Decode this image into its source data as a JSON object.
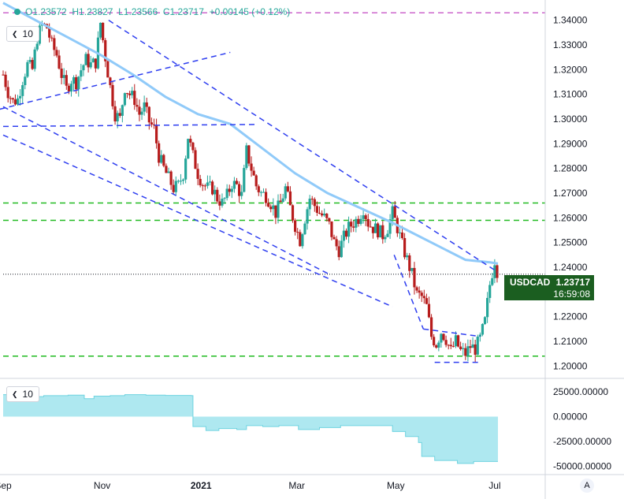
{
  "header": {
    "o": "O1.23572",
    "h": "H1.23827",
    "l": "L1.23566",
    "c": "C1.23717",
    "chg": "+0.00145 (+0.12%)"
  },
  "legend": {
    "main_length": "10",
    "sub_length": "10"
  },
  "price_tag": {
    "symbol": "USDCAD",
    "price": "1.23717",
    "countdown": "16:59:08"
  },
  "auto_button": "A",
  "colors": {
    "up": "#26a69a",
    "down": "#b71c1c",
    "ma": "#90caf9",
    "trend": "#2f3ff0",
    "support": "#22bb22",
    "top_line": "#cc66cc",
    "tag": "#1b5e20",
    "lower_fill": "#aee8f0"
  },
  "chart_data": [
    {
      "type": "candlestick",
      "title": "",
      "symbol": "USDCAD",
      "x_ticks": [
        "Sep",
        "Nov",
        "2021",
        "Mar",
        "May",
        "Jul"
      ],
      "y_ticks": [
        "1.20000",
        "1.21000",
        "1.22000",
        "1.23000",
        "1.24000",
        "1.25000",
        "1.26000",
        "1.27000",
        "1.28000",
        "1.29000",
        "1.30000",
        "1.31000",
        "1.32000",
        "1.33000",
        "1.34000"
      ],
      "ylim": [
        1.195,
        1.345
      ],
      "last_price": 1.23717,
      "x_span_days": [
        0,
        305
      ],
      "date_ticks_day": [
        0,
        61,
        122,
        181,
        242,
        303
      ],
      "close_path": [
        [
          0,
          1.318
        ],
        [
          3,
          1.311
        ],
        [
          6,
          1.307
        ],
        [
          9,
          1.308
        ],
        [
          12,
          1.316
        ],
        [
          15,
          1.322
        ],
        [
          18,
          1.32
        ],
        [
          21,
          1.333
        ],
        [
          24,
          1.338
        ],
        [
          27,
          1.337
        ],
        [
          30,
          1.33
        ],
        [
          33,
          1.326
        ],
        [
          36,
          1.318
        ],
        [
          39,
          1.312
        ],
        [
          42,
          1.316
        ],
        [
          45,
          1.315
        ],
        [
          48,
          1.32
        ],
        [
          51,
          1.324
        ],
        [
          54,
          1.322
        ],
        [
          57,
          1.323
        ],
        [
          60,
          1.339
        ],
        [
          63,
          1.325
        ],
        [
          66,
          1.313
        ],
        [
          69,
          1.302
        ],
        [
          72,
          1.3
        ],
        [
          75,
          1.313
        ],
        [
          78,
          1.31
        ],
        [
          81,
          1.308
        ],
        [
          84,
          1.302
        ],
        [
          87,
          1.305
        ],
        [
          90,
          1.299
        ],
        [
          93,
          1.296
        ],
        [
          96,
          1.285
        ],
        [
          99,
          1.28
        ],
        [
          102,
          1.276
        ],
        [
          105,
          1.272
        ],
        [
          108,
          1.273
        ],
        [
          111,
          1.278
        ],
        [
          114,
          1.293
        ],
        [
          117,
          1.285
        ],
        [
          120,
          1.278
        ],
        [
          123,
          1.274
        ],
        [
          126,
          1.272
        ],
        [
          129,
          1.272
        ],
        [
          132,
          1.268
        ],
        [
          135,
          1.266
        ],
        [
          138,
          1.269
        ],
        [
          141,
          1.274
        ],
        [
          144,
          1.273
        ],
        [
          147,
          1.269
        ],
        [
          150,
          1.287
        ],
        [
          153,
          1.28
        ],
        [
          156,
          1.273
        ],
        [
          159,
          1.27
        ],
        [
          162,
          1.269
        ],
        [
          165,
          1.266
        ],
        [
          168,
          1.262
        ],
        [
          171,
          1.266
        ],
        [
          174,
          1.272
        ],
        [
          177,
          1.264
        ],
        [
          180,
          1.257
        ],
        [
          183,
          1.251
        ],
        [
          186,
          1.26
        ],
        [
          189,
          1.268
        ],
        [
          192,
          1.265
        ],
        [
          195,
          1.262
        ],
        [
          198,
          1.26
        ],
        [
          201,
          1.257
        ],
        [
          204,
          1.25
        ],
        [
          207,
          1.247
        ],
        [
          210,
          1.252
        ],
        [
          213,
          1.256
        ],
        [
          216,
          1.258
        ],
        [
          219,
          1.26
        ],
        [
          222,
          1.264
        ],
        [
          225,
          1.258
        ],
        [
          228,
          1.256
        ],
        [
          231,
          1.255
        ],
        [
          234,
          1.253
        ],
        [
          237,
          1.256
        ],
        [
          240,
          1.262
        ],
        [
          243,
          1.256
        ],
        [
          246,
          1.249
        ],
        [
          249,
          1.243
        ],
        [
          252,
          1.237
        ],
        [
          255,
          1.229
        ],
        [
          258,
          1.228
        ],
        [
          261,
          1.224
        ],
        [
          264,
          1.212
        ],
        [
          267,
          1.209
        ],
        [
          270,
          1.214
        ],
        [
          273,
          1.211
        ],
        [
          276,
          1.206
        ],
        [
          279,
          1.21
        ],
        [
          282,
          1.206
        ],
        [
          285,
          1.205
        ],
        [
          288,
          1.208
        ],
        [
          291,
          1.207
        ],
        [
          294,
          1.211
        ],
        [
          297,
          1.218
        ],
        [
          300,
          1.233
        ],
        [
          303,
          1.243
        ],
        [
          305,
          1.2372
        ]
      ],
      "ma_path": [
        [
          0,
          1.347
        ],
        [
          20,
          1.34
        ],
        [
          40,
          1.333
        ],
        [
          60,
          1.326
        ],
        [
          80,
          1.318
        ],
        [
          100,
          1.309
        ],
        [
          120,
          1.302
        ],
        [
          140,
          1.298
        ],
        [
          160,
          1.288
        ],
        [
          180,
          1.278
        ],
        [
          200,
          1.27
        ],
        [
          220,
          1.264
        ],
        [
          240,
          1.258
        ],
        [
          255,
          1.253
        ],
        [
          270,
          1.248
        ],
        [
          285,
          1.243
        ],
        [
          300,
          1.242
        ],
        [
          305,
          1.2415
        ]
      ],
      "trend_lines": [
        {
          "style": "dashed",
          "color": "trend",
          "points": [
            [
              -2,
              1.304
            ],
            [
              140,
              1.327
            ]
          ]
        },
        {
          "style": "dashed",
          "color": "trend",
          "points": [
            [
              0,
              1.297
            ],
            [
              155,
              1.2978
            ]
          ]
        },
        {
          "style": "dashed",
          "color": "trend",
          "points": [
            [
              0,
              1.305
            ],
            [
              200,
              1.2375
            ]
          ]
        },
        {
          "style": "dashed",
          "color": "trend",
          "points": [
            [
              0,
              1.2935
            ],
            [
              240,
              1.224
            ]
          ]
        },
        {
          "style": "dashed",
          "color": "trend",
          "points": [
            [
              65,
              1.34
            ],
            [
              305,
              1.238
            ]
          ]
        },
        {
          "style": "dashed",
          "color": "trend",
          "points": [
            [
              241,
              1.245
            ],
            [
              259,
              1.215
            ]
          ]
        },
        {
          "style": "dashed",
          "color": "trend",
          "points": [
            [
              259,
              1.215
            ],
            [
              294,
              1.212
            ]
          ]
        },
        {
          "style": "dashed",
          "color": "trend",
          "points": [
            [
              266,
              1.2015
            ],
            [
              293,
              1.2015
            ]
          ]
        }
      ],
      "horizontal_levels": [
        {
          "value": 1.343,
          "color": "top_line"
        },
        {
          "value": 1.266,
          "color": "support"
        },
        {
          "value": 1.259,
          "color": "support"
        },
        {
          "value": 1.204,
          "color": "support"
        }
      ]
    },
    {
      "type": "area",
      "title": "",
      "y_ticks": [
        "25000.00000",
        "0.00000",
        "-25000.00000",
        "-50000.00000"
      ],
      "ylim": [
        -55000,
        32000
      ],
      "values_path": [
        [
          0,
          22000
        ],
        [
          8,
          18000
        ],
        [
          14,
          20000
        ],
        [
          25,
          21000
        ],
        [
          40,
          21500
        ],
        [
          50,
          18000
        ],
        [
          56,
          20500
        ],
        [
          66,
          21000
        ],
        [
          75,
          22000
        ],
        [
          88,
          21500
        ],
        [
          100,
          21200
        ],
        [
          116,
          21000
        ],
        [
          117,
          -10000
        ],
        [
          125,
          -14000
        ],
        [
          133,
          -12000
        ],
        [
          144,
          -13000
        ],
        [
          150,
          -9000
        ],
        [
          160,
          -10000
        ],
        [
          170,
          -9000
        ],
        [
          182,
          -13000
        ],
        [
          195,
          -11000
        ],
        [
          208,
          -9000
        ],
        [
          238,
          -9000
        ],
        [
          240,
          -15000
        ],
        [
          248,
          -20000
        ],
        [
          256,
          -26000
        ],
        [
          258,
          -40000
        ],
        [
          266,
          -44000
        ],
        [
          280,
          -47000
        ],
        [
          290,
          -45000
        ],
        [
          305,
          -45000
        ]
      ]
    }
  ]
}
